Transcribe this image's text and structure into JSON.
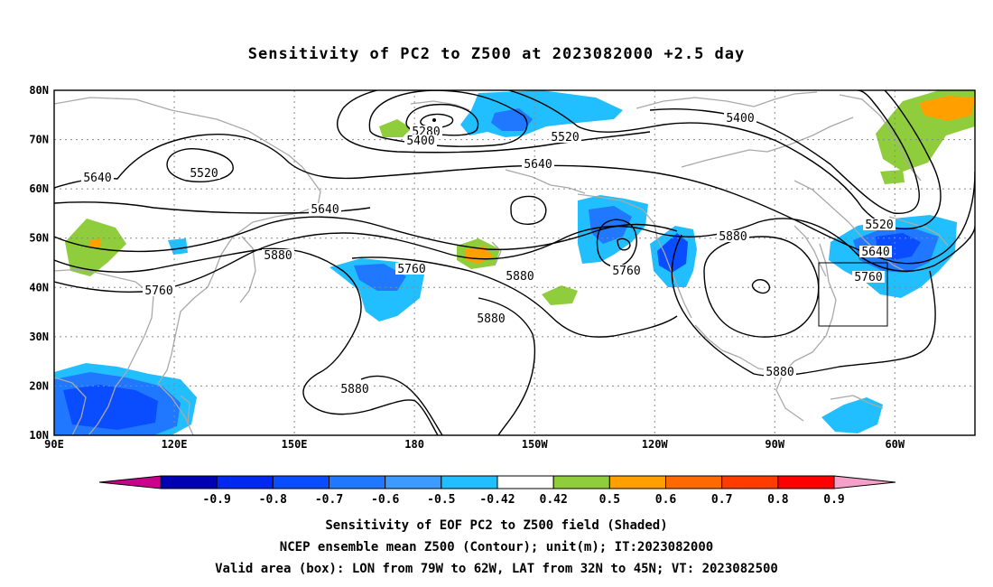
{
  "title": "Sensitivity of PC2 to Z500 at 2023082000 +2.5 day",
  "map": {
    "lat_labels": [
      "80N",
      "70N",
      "60N",
      "50N",
      "40N",
      "30N",
      "20N",
      "10N"
    ],
    "lon_labels": [
      "90E",
      "120E",
      "150E",
      "180",
      "150W",
      "120W",
      "90W",
      "60W"
    ],
    "contour_labels": [
      "5280",
      "5400",
      "5520",
      "5400",
      "5520",
      "5640",
      "5640",
      "5520",
      "5640",
      "5640",
      "5760",
      "5880",
      "5760",
      "5880",
      "5880",
      "5760",
      "5880",
      "5880",
      "5880",
      "5520",
      "5640",
      "5760"
    ],
    "validation_box": {
      "lon_west": "79W",
      "lon_east": "62W",
      "lat_south": "32N",
      "lat_north": "45N"
    }
  },
  "colorbar": {
    "labels": [
      "-0.9",
      "-0.8",
      "-0.7",
      "-0.6",
      "-0.5",
      "-0.42",
      "0.42",
      "0.5",
      "0.6",
      "0.7",
      "0.8",
      "0.9"
    ],
    "colors": [
      "#c8008c",
      "#0000b4",
      "#0028f0",
      "#0a4cff",
      "#1f78ff",
      "#3d9bff",
      "#21bfff",
      "#ffffff",
      "#8fcd3c",
      "#ffa000",
      "#ff6a00",
      "#ff3c00",
      "#ff0000",
      "#f5a0c8"
    ]
  },
  "captions": [
    "Sensitivity of EOF PC2 to Z500 field (Shaded)",
    "NCEP ensemble mean Z500 (Contour); unit(m); IT:2023082000",
    "Valid area (box): LON from 79W to 62W, LAT from 32N to 45N; VT: 2023082500"
  ]
}
